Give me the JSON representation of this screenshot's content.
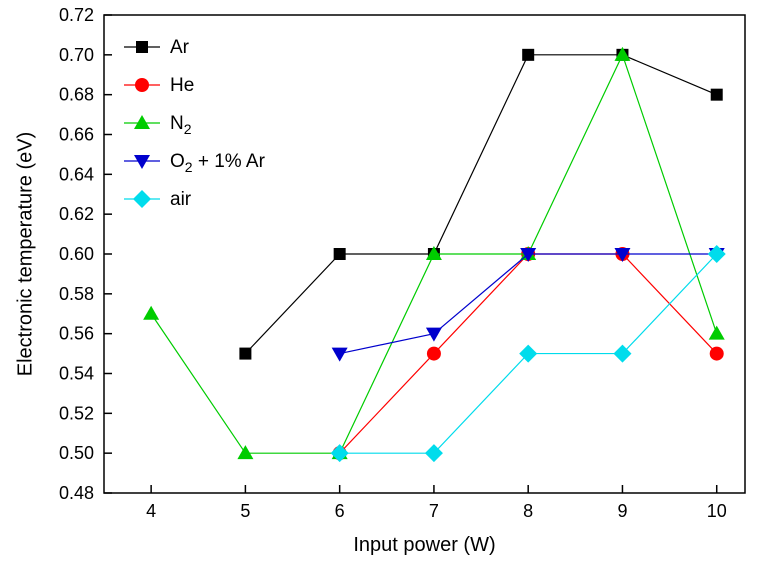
{
  "chart_data": {
    "type": "line",
    "title": "",
    "xlabel": "Input power (W)",
    "ylabel": "Electronic temperature (eV)",
    "xlim": [
      3.5,
      10.3
    ],
    "ylim": [
      0.48,
      0.72
    ],
    "xticks": [
      4,
      5,
      6,
      7,
      8,
      9,
      10
    ],
    "yticks": [
      0.48,
      0.5,
      0.52,
      0.54,
      0.56,
      0.58,
      0.6,
      0.62,
      0.64,
      0.66,
      0.68,
      0.7,
      0.72
    ],
    "grid": false,
    "legend_position": "top-left",
    "series": [
      {
        "name": "Ar",
        "color": "#000000",
        "marker": "square",
        "x": [
          5,
          6,
          7,
          8,
          9,
          10
        ],
        "y": [
          0.55,
          0.6,
          0.6,
          0.7,
          0.7,
          0.68
        ]
      },
      {
        "name": "He",
        "color": "#ff0000",
        "marker": "circle",
        "x": [
          6,
          7,
          8,
          9,
          10
        ],
        "y": [
          0.5,
          0.55,
          0.6,
          0.6,
          0.55
        ]
      },
      {
        "name": "N₂",
        "color": "#00cc00",
        "marker": "triangle-up",
        "x": [
          4,
          5,
          6,
          7,
          8,
          9,
          10
        ],
        "y": [
          0.57,
          0.5,
          0.5,
          0.6,
          0.6,
          0.7,
          0.56
        ]
      },
      {
        "name": "O₂ + 1% Ar",
        "color": "#0000cd",
        "marker": "triangle-down",
        "x": [
          6,
          7,
          8,
          9,
          10
        ],
        "y": [
          0.55,
          0.56,
          0.6,
          0.6,
          0.6
        ]
      },
      {
        "name": "air",
        "color": "#00dcec",
        "marker": "diamond",
        "x": [
          6,
          7,
          8,
          9,
          10
        ],
        "y": [
          0.5,
          0.5,
          0.55,
          0.55,
          0.6
        ]
      }
    ]
  }
}
